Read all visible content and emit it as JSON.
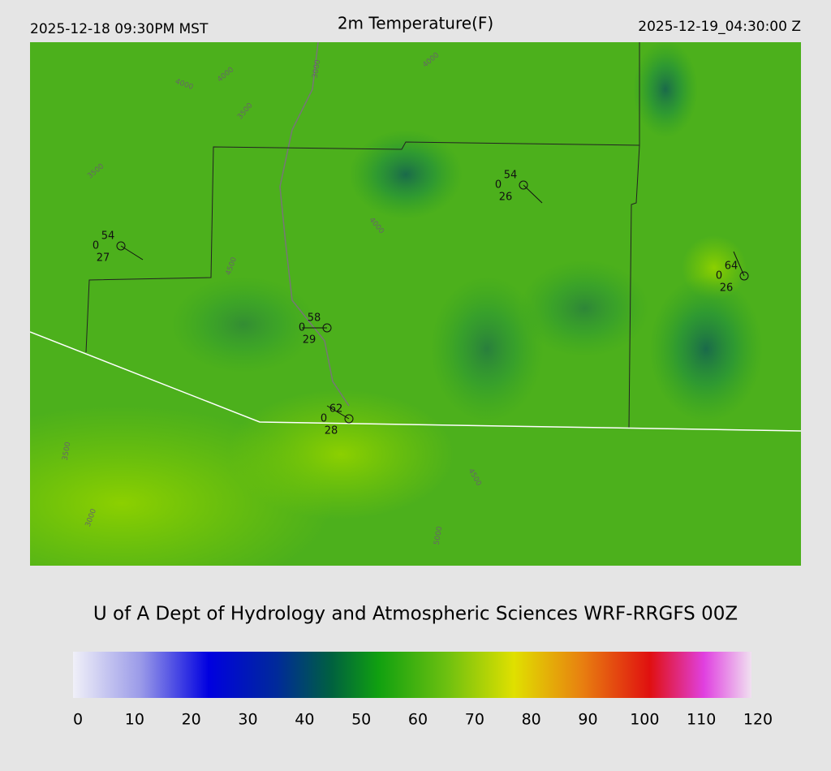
{
  "header": {
    "left": "2025-12-18 09:30PM MST",
    "title": "2m Temperature(F)",
    "right": "2025-12-19_04:30:00 Z"
  },
  "stations": [
    {
      "temperature": 54,
      "wind": 0,
      "dewpoint": 27
    },
    {
      "temperature": 54,
      "wind": 0,
      "dewpoint": 26
    },
    {
      "temperature": 64,
      "wind": 0,
      "dewpoint": 26
    },
    {
      "temperature": 58,
      "wind": 0,
      "dewpoint": 29
    },
    {
      "temperature": 62,
      "wind": 0,
      "dewpoint": 28
    }
  ],
  "contour_labels": [
    4000,
    4000,
    4000,
    4000,
    3000,
    3000,
    3500,
    3500,
    3500,
    4500,
    4500,
    5000
  ],
  "footer": "U of A Dept of Hydrology and Atmospheric Sciences WRF-RRGFS 00Z",
  "colorbar": {
    "ticks": [
      0,
      10,
      20,
      30,
      40,
      50,
      60,
      70,
      80,
      90,
      100,
      110,
      120
    ]
  }
}
